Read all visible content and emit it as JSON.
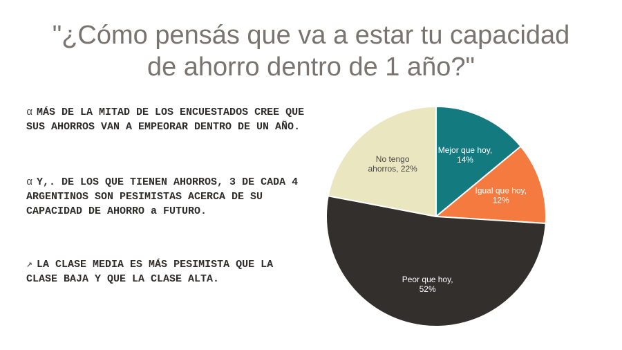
{
  "title": {
    "line1": "\"¿Cómo pensás que va a estar tu capacidad",
    "line2": "de ahorro dentro de 1 año?\""
  },
  "bullets": [
    {
      "icon": "alpha-icon",
      "marker": "α",
      "text": "MÁS DE LA MITAD DE LOS ENCUESTADOS CREE QUE SUS AHORROS VAN A EMPEORAR DENTRO DE UN AÑO."
    },
    {
      "icon": "alpha-icon",
      "marker": "α",
      "text": "Y,. DE LOS QUE TIENEN AHORROS, 3 DE CADA 4 ARGENTINOS SON PESIMISTAS ACERCA DE SU CAPACIDAD DE AHORRO a FUTURO."
    },
    {
      "icon": "arrow-up-right-icon",
      "marker": "↗",
      "text": "LA CLASE MEDIA ES MÁS PESIMISTA QUE LA CLASE BAJA Y QUE LA CLASE ALTA."
    }
  ],
  "chart_data": {
    "type": "pie",
    "title": "",
    "slices": [
      {
        "label": "Mejor que hoy",
        "value": 14,
        "display": "Mejor que hoy,|14%",
        "color": "#137a80",
        "text_color": "#ffffff"
      },
      {
        "label": "Igual que hoy",
        "value": 12,
        "display": "Igual que hoy,|12%",
        "color": "#f47a3f",
        "text_color": "#ffffff"
      },
      {
        "label": "Peor que hoy",
        "value": 52,
        "display": "Peor que hoy,|52%",
        "color": "#322f2d",
        "text_color": "#ffffff"
      },
      {
        "label": "No tengo ahorros",
        "value": 22,
        "display": "No tengo|ahorros, 22%",
        "color": "#e9e6c0",
        "text_color": "#4a4745"
      }
    ]
  }
}
